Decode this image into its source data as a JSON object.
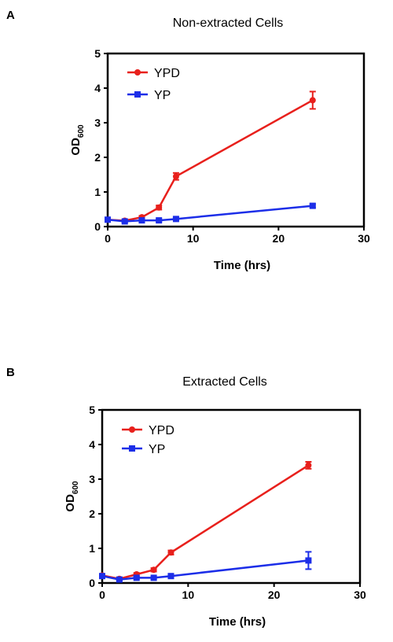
{
  "chart_data": [
    {
      "type": "line",
      "panel": "A",
      "title": "Non-extracted Cells",
      "xlabel": "Time (hrs)",
      "ylabel": {
        "main": "OD",
        "sub": "600"
      },
      "xlim": [
        0,
        30
      ],
      "ylim": [
        0,
        5
      ],
      "x_ticks": [
        0,
        10,
        20,
        30
      ],
      "y_ticks": [
        0,
        1,
        2,
        3,
        4,
        5
      ],
      "grid": false,
      "legend": "top-left",
      "series": [
        {
          "name": "YPD",
          "color": "#e8201c",
          "marker": "circle",
          "x": [
            0,
            2,
            4,
            6,
            8,
            24
          ],
          "y": [
            0.2,
            0.17,
            0.27,
            0.55,
            1.45,
            3.65
          ],
          "err": [
            0.03,
            0.03,
            0.04,
            0.06,
            0.1,
            0.25
          ]
        },
        {
          "name": "YP",
          "color": "#1c2ee8",
          "marker": "square",
          "x": [
            0,
            2,
            4,
            6,
            8,
            24
          ],
          "y": [
            0.2,
            0.15,
            0.18,
            0.18,
            0.22,
            0.6
          ],
          "err": [
            0.03,
            0.03,
            0.03,
            0.03,
            0.03,
            0.05
          ]
        }
      ]
    },
    {
      "type": "line",
      "panel": "B",
      "title": "Extracted Cells",
      "xlabel": "Time (hrs)",
      "ylabel": {
        "main": "OD",
        "sub": "600"
      },
      "xlim": [
        0,
        30
      ],
      "ylim": [
        0,
        5
      ],
      "x_ticks": [
        0,
        10,
        20,
        30
      ],
      "y_ticks": [
        0,
        1,
        2,
        3,
        4,
        5
      ],
      "grid": false,
      "legend": "top-left",
      "series": [
        {
          "name": "YPD",
          "color": "#e8201c",
          "marker": "circle",
          "x": [
            0,
            2,
            4,
            6,
            8,
            24
          ],
          "y": [
            0.22,
            0.12,
            0.25,
            0.38,
            0.88,
            3.4
          ],
          "err": [
            0.03,
            0.03,
            0.04,
            0.05,
            0.06,
            0.1
          ]
        },
        {
          "name": "YP",
          "color": "#1c2ee8",
          "marker": "square",
          "x": [
            0,
            2,
            4,
            6,
            8,
            24
          ],
          "y": [
            0.2,
            0.1,
            0.15,
            0.15,
            0.2,
            0.65
          ],
          "err": [
            0.03,
            0.03,
            0.03,
            0.03,
            0.03,
            0.25
          ]
        }
      ]
    }
  ]
}
